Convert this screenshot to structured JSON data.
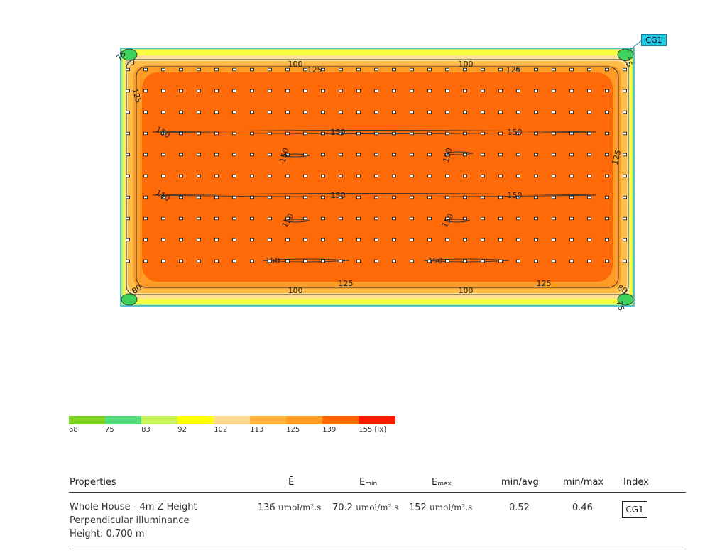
{
  "chart_data": {
    "type": "heatmap",
    "title": "",
    "legend_unit": "[lx]",
    "legend_levels": [
      "68",
      "75",
      "83",
      "92",
      "102",
      "113",
      "125",
      "139",
      "155 [lx]"
    ],
    "legend_colors": [
      "#7ed321",
      "#55dc7a",
      "#c8f25a",
      "#ffff00",
      "#ffd890",
      "#ffb33d",
      "#ff9a22",
      "#ff6a00",
      "#ff1a00"
    ],
    "contour_labels": [
      "100",
      "100",
      "125",
      "125",
      "125",
      "125",
      "150",
      "150",
      "150",
      "150",
      "150",
      "150",
      "150",
      "150",
      "150",
      "150",
      "150",
      "150",
      "125",
      "125",
      "100",
      "100",
      "80",
      "80",
      "80",
      "75",
      "75",
      "75"
    ],
    "calculation_grid": "CG1",
    "luminaire_rows": 10,
    "luminaire_cols": 29
  },
  "table": {
    "headers": {
      "properties": "Properties",
      "e_avg": "Ē",
      "e_min_base": "E",
      "e_min_sub": "min",
      "e_max_base": "E",
      "e_max_sub": "max",
      "min_avg": "min/avg",
      "min_max": "min/max",
      "index": "Index"
    },
    "row": {
      "name": "Whole House - 4m Z Height",
      "type": "Perpendicular illuminance",
      "height": "Height: 0.700 m",
      "e_avg": "136",
      "e_avg_unit": "umol/m².s",
      "e_min": "70.2",
      "e_min_unit": "umol/m².s",
      "e_max": "152",
      "e_max_unit": "umol/m².s",
      "min_avg": "0.52",
      "min_max": "0.46",
      "index": "CG1"
    }
  }
}
